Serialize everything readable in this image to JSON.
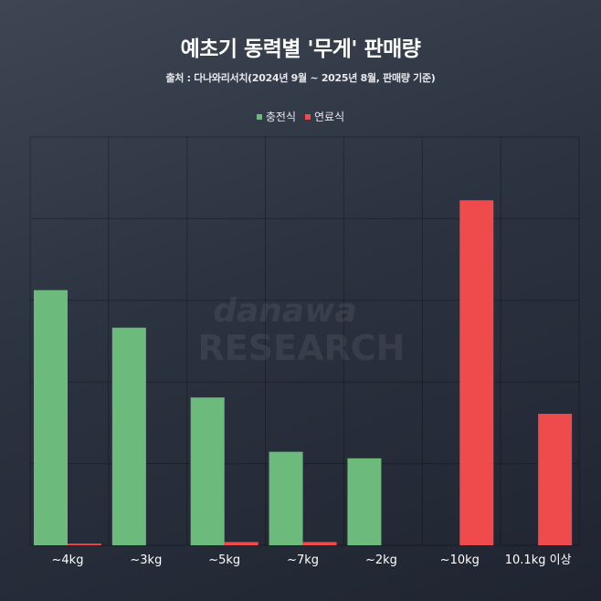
{
  "chart_data": {
    "type": "bar",
    "title": "예초기 동력별 '무게' 판매량",
    "subtitle": "출처 : 다나와리서치(2024년 9월 ~ 2025년 8월, 판매량 기준)",
    "watermark": [
      "danawa",
      "RESEARCH"
    ],
    "categories": [
      "~4kg",
      "~3kg",
      "~5kg",
      "~7kg",
      "~2kg",
      "~10kg",
      "10.1kg 이상"
    ],
    "series": [
      {
        "name": "충전식",
        "color": "#6cbb7d",
        "values": [
          6.25,
          5.33,
          3.62,
          2.29,
          2.13,
          0,
          0
        ]
      },
      {
        "name": "연료식",
        "color": "#ef4b4d",
        "values": [
          0.04,
          0,
          0.08,
          0.08,
          0,
          8.45,
          3.22
        ]
      }
    ],
    "ylim": [
      0,
      10
    ],
    "grid": true,
    "legend_position": "top-center"
  }
}
